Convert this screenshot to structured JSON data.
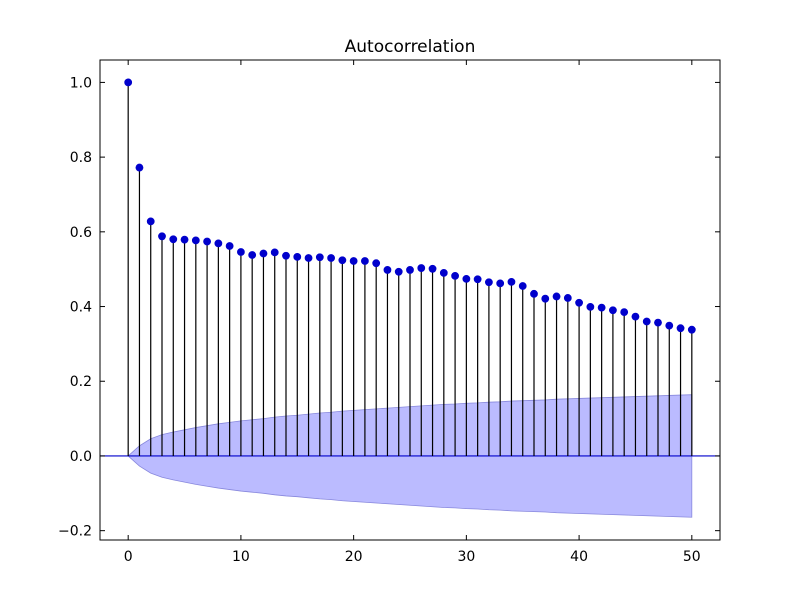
{
  "chart_data": {
    "type": "scatter",
    "subtype": "stem",
    "title": "Autocorrelation",
    "xlabel": "",
    "ylabel": "",
    "xlim": [
      -2.5,
      52.5
    ],
    "ylim": [
      -0.225,
      1.06
    ],
    "x_ticks": [
      0,
      10,
      20,
      30,
      40,
      50
    ],
    "x_tick_labels": [
      "0",
      "10",
      "20",
      "30",
      "40",
      "50"
    ],
    "y_ticks": [
      -0.2,
      0.0,
      0.2,
      0.4,
      0.6,
      0.8,
      1.0
    ],
    "y_tick_labels": [
      "−0.2",
      "0.0",
      "0.2",
      "0.4",
      "0.6",
      "0.8",
      "1.0"
    ],
    "grid": false,
    "series": [
      {
        "values": [
          1.0,
          0.772,
          0.628,
          0.588,
          0.58,
          0.579,
          0.577,
          0.574,
          0.569,
          0.562,
          0.546,
          0.538,
          0.542,
          0.545,
          0.536,
          0.533,
          0.53,
          0.532,
          0.53,
          0.524,
          0.522,
          0.522,
          0.516,
          0.498,
          0.493,
          0.498,
          0.503,
          0.501,
          0.49,
          0.482,
          0.474,
          0.473,
          0.465,
          0.462,
          0.466,
          0.455,
          0.434,
          0.421,
          0.427,
          0.423,
          0.41,
          0.399,
          0.397,
          0.39,
          0.385,
          0.373,
          0.36,
          0.357,
          0.349,
          0.342,
          0.338
        ]
      }
    ],
    "confidence_band": {
      "upper": [
        0.0,
        0.027,
        0.046,
        0.057,
        0.064,
        0.07,
        0.076,
        0.081,
        0.086,
        0.09,
        0.094,
        0.097,
        0.1,
        0.104,
        0.107,
        0.109,
        0.112,
        0.115,
        0.117,
        0.12,
        0.122,
        0.124,
        0.126,
        0.128,
        0.13,
        0.132,
        0.134,
        0.136,
        0.138,
        0.139,
        0.141,
        0.142,
        0.144,
        0.145,
        0.147,
        0.148,
        0.149,
        0.15,
        0.152,
        0.153,
        0.154,
        0.155,
        0.156,
        0.157,
        0.158,
        0.159,
        0.16,
        0.161,
        0.162,
        0.163,
        0.164
      ],
      "fill_color": "#bbbbff",
      "edge_color": "#8888dd"
    },
    "colors": {
      "marker": "#0000cc",
      "stem": "#000000",
      "zero_line": "#0000cc"
    }
  }
}
